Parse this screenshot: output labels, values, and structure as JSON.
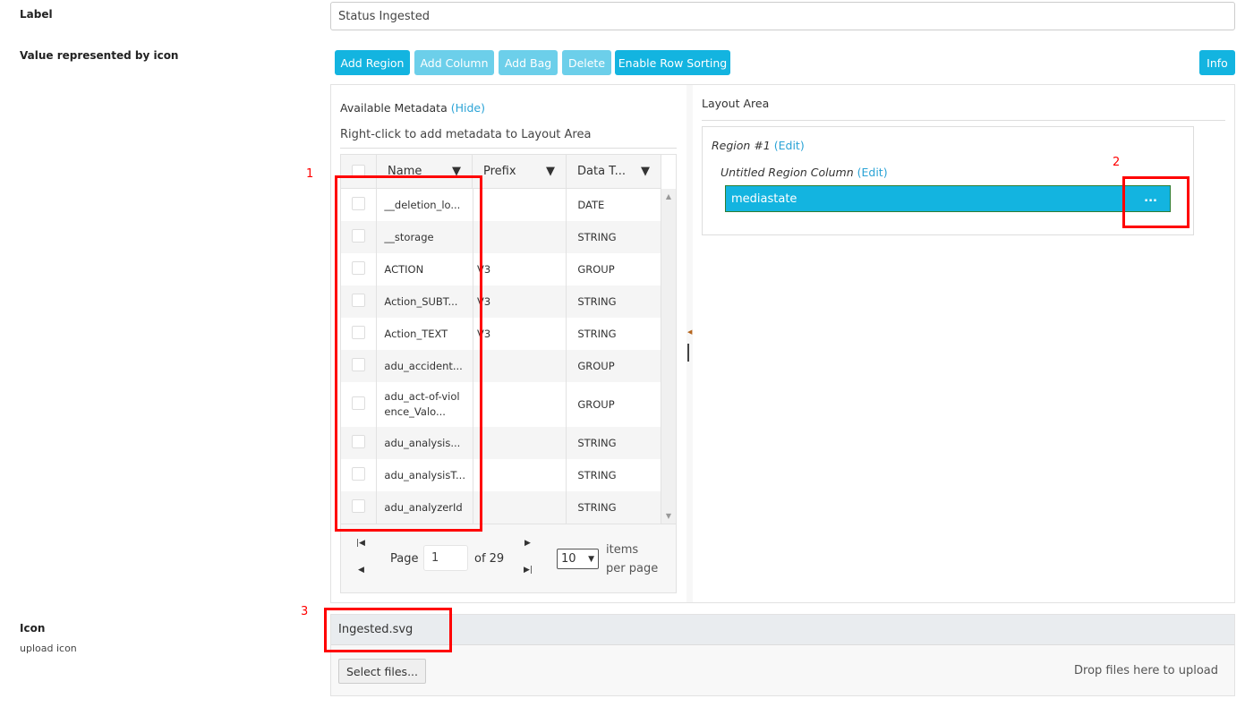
{
  "fields": {
    "label_title": "Label",
    "label_value": "Status Ingested",
    "value_title": "Value represented by icon",
    "icon_title": "Icon",
    "icon_subtitle": "upload icon"
  },
  "toolbar": {
    "add_region": "Add Region",
    "add_column": "Add Column",
    "add_bag": "Add Bag",
    "delete": "Delete",
    "enable_row_sorting": "Enable Row Sorting",
    "info": "Info"
  },
  "metadata": {
    "title": "Available Metadata",
    "hide": "(Hide)",
    "hint": "Right-click to add metadata to Layout Area",
    "columns": [
      "Name",
      "Prefix",
      "Data T..."
    ],
    "rows": [
      {
        "name": "__deletion_lo...",
        "prefix": "",
        "type": "DATE"
      },
      {
        "name": "__storage",
        "prefix": "",
        "type": "STRING"
      },
      {
        "name": "ACTION",
        "prefix": "V3",
        "type": "GROUP"
      },
      {
        "name": "Action_SUBT...",
        "prefix": "V3",
        "type": "STRING"
      },
      {
        "name": "Action_TEXT",
        "prefix": "V3",
        "type": "STRING"
      },
      {
        "name": "adu_accident...",
        "prefix": "",
        "type": "GROUP"
      },
      {
        "name": "adu_act-of-violence_Valo...",
        "prefix": "",
        "type": "GROUP"
      },
      {
        "name": "adu_analysis...",
        "prefix": "",
        "type": "STRING"
      },
      {
        "name": "adu_analysisT...",
        "prefix": "",
        "type": "STRING"
      },
      {
        "name": "adu_analyzerId",
        "prefix": "",
        "type": "STRING"
      }
    ],
    "pager": {
      "page_label": "Page",
      "page": "1",
      "of": "of 29",
      "per_page": "10",
      "items": "items",
      "per_page_label": "per page"
    }
  },
  "layout": {
    "title": "Layout Area",
    "region": "Region #1",
    "region_edit": "(Edit)",
    "column": "Untitled Region Column",
    "column_edit": "(Edit)",
    "item": "mediastate",
    "item_menu": "..."
  },
  "upload": {
    "filename": "Ingested.svg",
    "select": "Select files...",
    "drop": "Drop files here to upload"
  },
  "annotations": [
    "1",
    "2",
    "3"
  ],
  "colors": {
    "accent": "#13b4e0",
    "annotation": "#ff0000"
  }
}
